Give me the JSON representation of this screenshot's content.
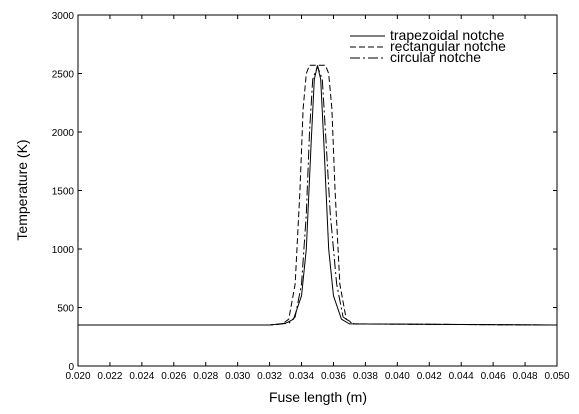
{
  "chart_data": {
    "type": "line",
    "title": "",
    "xlabel": "Fuse length (m)",
    "ylabel": "Temperature (K)",
    "xlim": [
      0.02,
      0.05
    ],
    "ylim": [
      0,
      3000
    ],
    "xticks": [
      "0.020",
      "0.022",
      "0.024",
      "0.026",
      "0.028",
      "0.030",
      "0.032",
      "0.034",
      "0.036",
      "0.038",
      "0.040",
      "0.042",
      "0.044",
      "0.046",
      "0.048",
      "0.050"
    ],
    "yticks": [
      "0",
      "500",
      "1000",
      "1500",
      "2000",
      "2500",
      "3000"
    ],
    "grid": false,
    "legend_position": "top-right",
    "series": [
      {
        "name": "trapezoidal notche",
        "style": "solid",
        "x": [
          0.02,
          0.032,
          0.033,
          0.0335,
          0.034,
          0.0343,
          0.0346,
          0.0348,
          0.035,
          0.0352,
          0.0354,
          0.0357,
          0.036,
          0.0365,
          0.037,
          0.05
        ],
        "y": [
          350,
          350,
          365,
          400,
          600,
          1000,
          1900,
          2450,
          2570,
          2450,
          1900,
          1000,
          600,
          400,
          360,
          350
        ]
      },
      {
        "name": "rectangular notche",
        "style": "dashed",
        "x": [
          0.02,
          0.032,
          0.0328,
          0.0332,
          0.0336,
          0.0339,
          0.0341,
          0.0343,
          0.0345,
          0.035,
          0.0355,
          0.0357,
          0.0359,
          0.0361,
          0.0364,
          0.0368,
          0.0373,
          0.05
        ],
        "y": [
          350,
          350,
          360,
          400,
          700,
          1500,
          2200,
          2500,
          2570,
          2570,
          2570,
          2500,
          2200,
          1500,
          700,
          400,
          360,
          350
        ]
      },
      {
        "name": "circular notche",
        "style": "dashdot",
        "x": [
          0.02,
          0.032,
          0.0332,
          0.0336,
          0.034,
          0.0343,
          0.0345,
          0.0347,
          0.035,
          0.0353,
          0.0355,
          0.0358,
          0.0362,
          0.0366,
          0.0372,
          0.05
        ],
        "y": [
          350,
          350,
          365,
          420,
          700,
          1300,
          2000,
          2450,
          2560,
          2450,
          2000,
          1300,
          700,
          420,
          360,
          350
        ]
      }
    ]
  },
  "colors": {
    "line": "#000000",
    "background": "#ffffff"
  }
}
